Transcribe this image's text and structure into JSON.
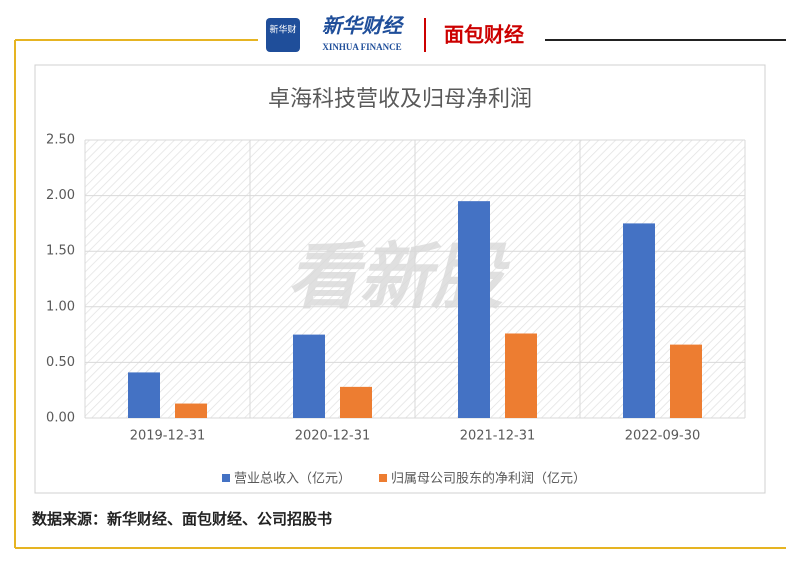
{
  "header": {
    "icon_text": "新华财",
    "logo_cn": "新华财经",
    "logo_en": "XINHUA FINANCE",
    "partner": "面包财经"
  },
  "chart_data": {
    "type": "bar",
    "title": "卓海科技营收及归母净利润",
    "categories": [
      "2019-12-31",
      "2020-12-31",
      "2021-12-31",
      "2022-09-30"
    ],
    "series": [
      {
        "name": "营业总收入（亿元）",
        "color": "#4472c4",
        "values": [
          0.41,
          0.75,
          1.95,
          1.75
        ]
      },
      {
        "name": "归属母公司股东的净利润（亿元）",
        "color": "#ed7d31",
        "values": [
          0.13,
          0.28,
          0.76,
          0.66
        ]
      }
    ],
    "ylim": [
      0,
      2.5
    ],
    "yticks": [
      {
        "value": 0,
        "label": "0.00"
      },
      {
        "value": 0.5,
        "label": "0.50"
      },
      {
        "value": 1,
        "label": "1.00"
      },
      {
        "value": 1.5,
        "label": "1.50"
      },
      {
        "value": 2,
        "label": "2.00"
      },
      {
        "value": 2.5,
        "label": "2.50"
      }
    ],
    "grid": true,
    "legend": "bottom",
    "watermark": "看新股"
  },
  "footer": {
    "source": "数据来源：新华财经、面包财经、公司招股书"
  }
}
